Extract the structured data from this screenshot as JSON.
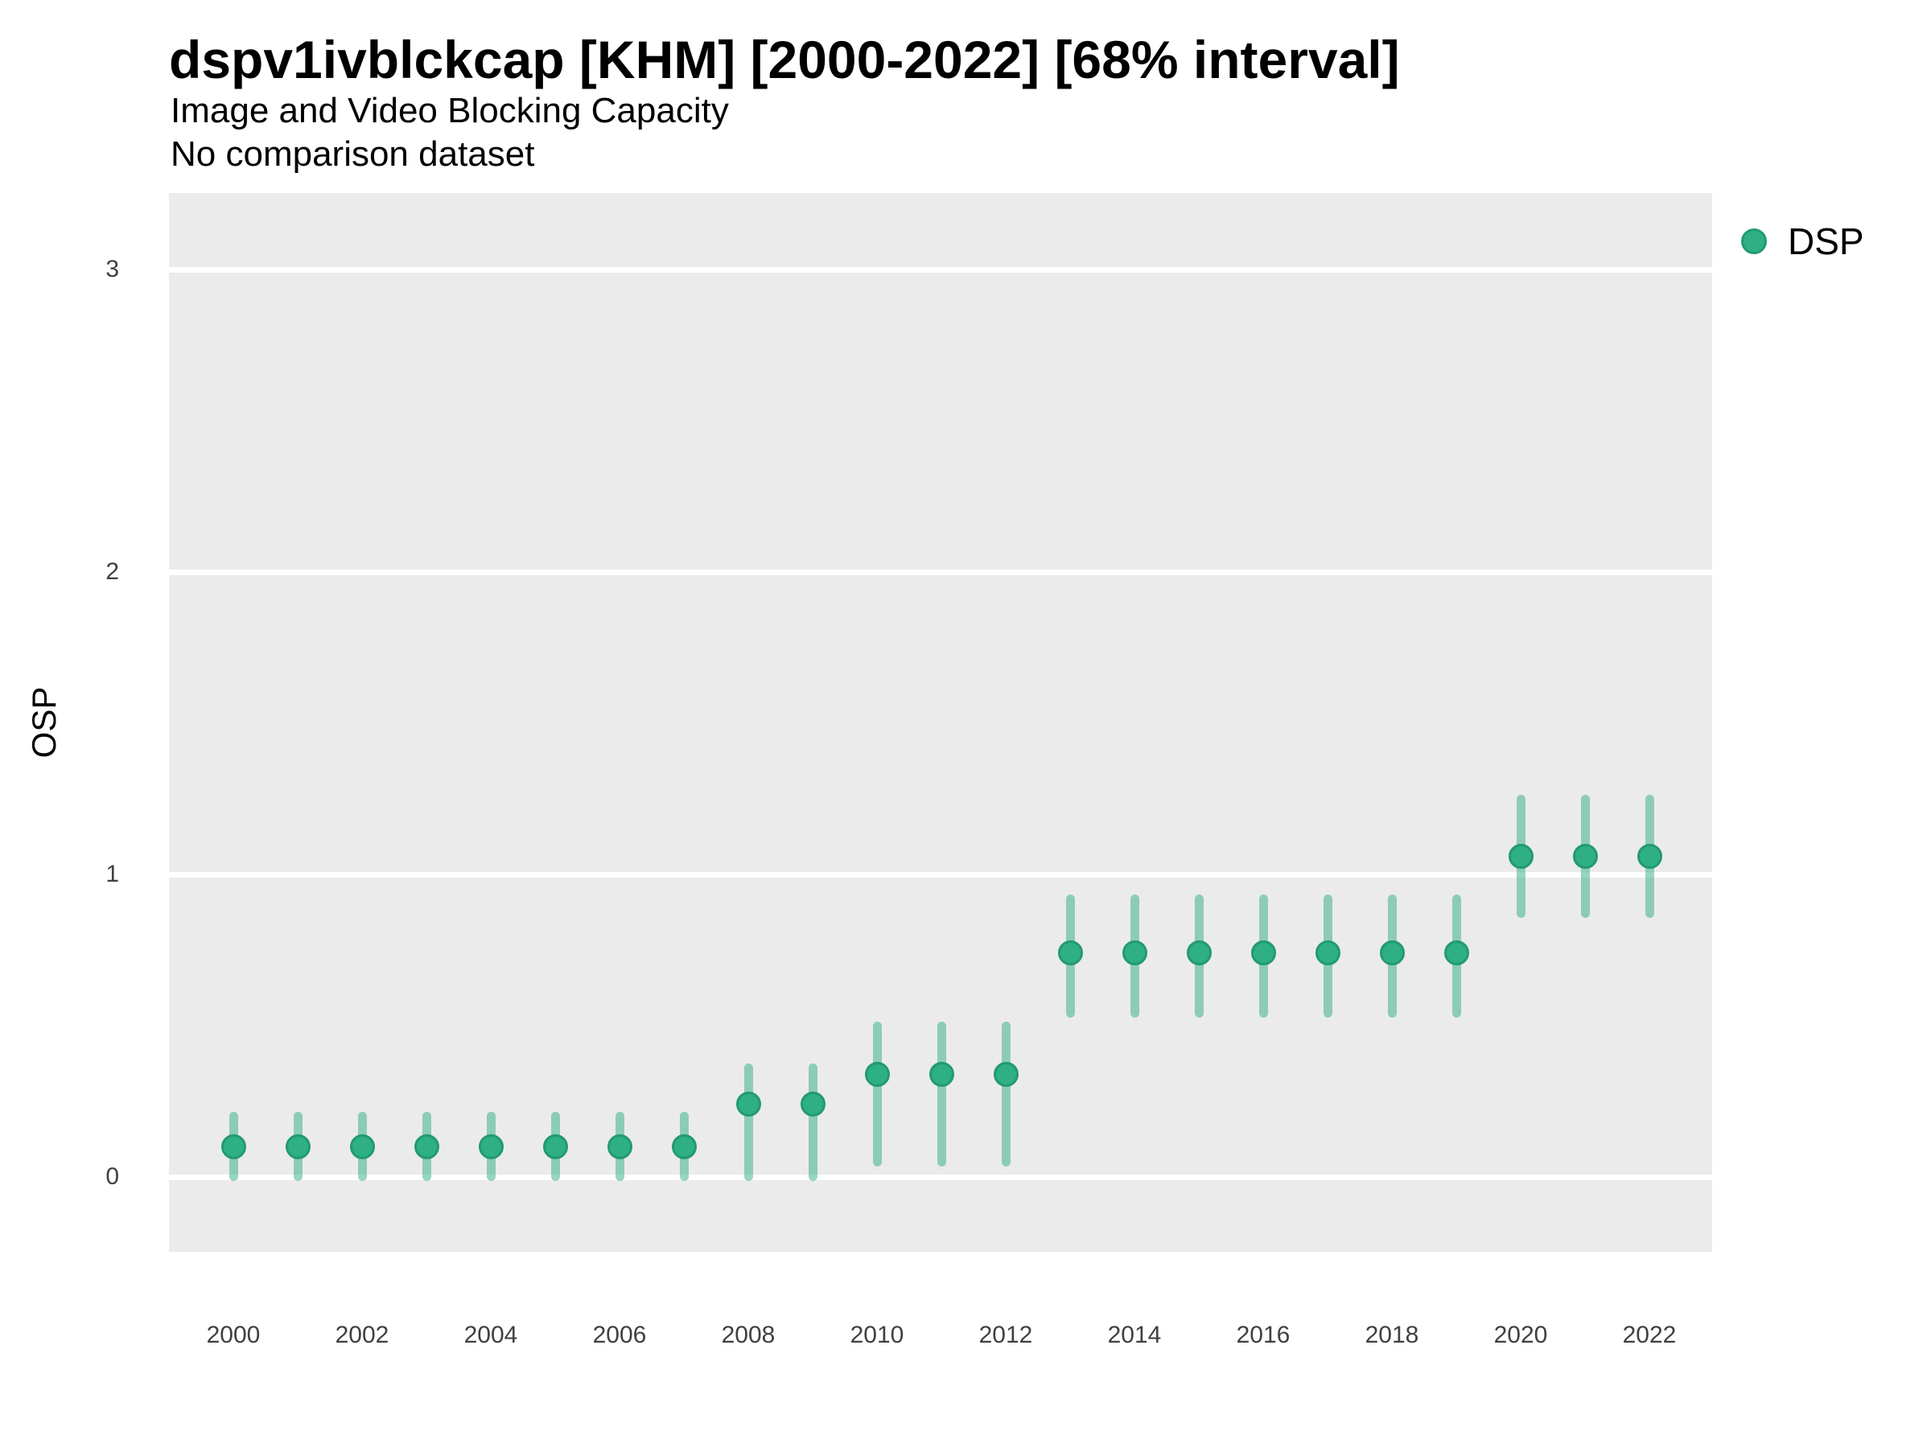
{
  "header": {
    "title": "dspv1ivblckcap [KHM] [2000-2022] [68% interval]",
    "subtitle": "Image and Video Blocking Capacity",
    "note": "No comparison dataset"
  },
  "y_axis": {
    "label": "OSP"
  },
  "legend": {
    "items": [
      {
        "label": "DSP"
      }
    ]
  },
  "colors": {
    "point_fill": "#2EAF84",
    "point_stroke": "#239A70",
    "interval_line": "rgba(46,174,131,0.5)",
    "panel_background": "#EBEBEB",
    "gridline": "#FFFFFF",
    "tick_text": "#404040",
    "text": "#000000"
  },
  "chart_data": {
    "type": "scatter",
    "subtype": "pointrange",
    "title": "dspv1ivblckcap [KHM] [2000-2022] [68% interval]",
    "subtitle": "Image and Video Blocking Capacity",
    "note": "No comparison dataset",
    "xlabel": "",
    "ylabel": "OSP",
    "interval": "68%",
    "grid": "horizontal-only",
    "legend_position": "right",
    "ylim": [
      -0.26,
      3.26
    ],
    "x": [
      2000,
      2001,
      2002,
      2003,
      2004,
      2005,
      2006,
      2007,
      2008,
      2009,
      2010,
      2011,
      2012,
      2013,
      2014,
      2015,
      2016,
      2017,
      2018,
      2019,
      2020,
      2021,
      2022
    ],
    "x_ticks": [
      2000,
      2002,
      2004,
      2006,
      2008,
      2010,
      2012,
      2014,
      2016,
      2018,
      2020,
      2022
    ],
    "y_ticks": [
      0,
      1,
      2,
      3
    ],
    "series": [
      {
        "name": "DSP",
        "mid": [
          0.1,
          0.1,
          0.1,
          0.1,
          0.1,
          0.1,
          0.1,
          0.1,
          0.24,
          0.24,
          0.34,
          0.34,
          0.34,
          0.74,
          0.74,
          0.74,
          0.74,
          0.74,
          0.74,
          0.74,
          1.06,
          1.06,
          1.06
        ],
        "lo": [
          0.0,
          0.0,
          0.0,
          0.0,
          0.0,
          0.0,
          0.0,
          0.0,
          0.0,
          0.0,
          0.05,
          0.05,
          0.05,
          0.54,
          0.54,
          0.54,
          0.54,
          0.54,
          0.54,
          0.54,
          0.87,
          0.87,
          0.87
        ],
        "hi": [
          0.2,
          0.2,
          0.2,
          0.2,
          0.2,
          0.2,
          0.2,
          0.2,
          0.36,
          0.36,
          0.5,
          0.5,
          0.5,
          0.92,
          0.92,
          0.92,
          0.92,
          0.92,
          0.92,
          0.92,
          1.25,
          1.25,
          1.25
        ]
      }
    ]
  }
}
